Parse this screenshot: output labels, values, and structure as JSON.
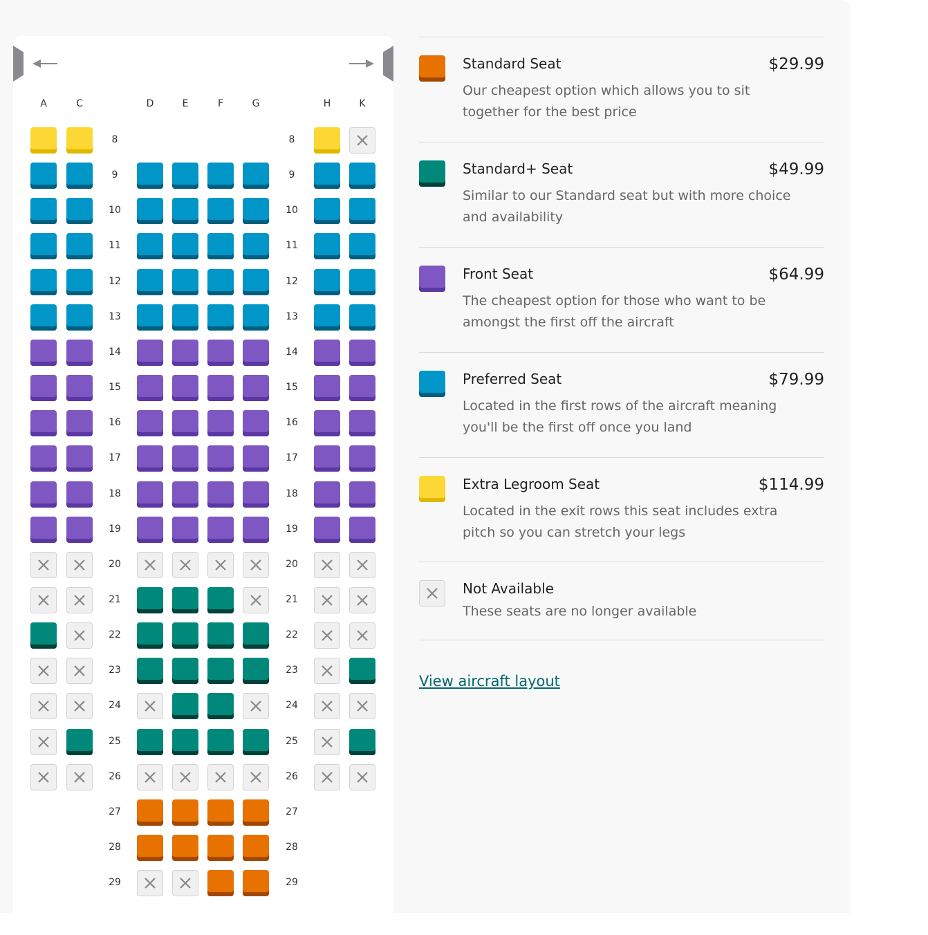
{
  "seat_types": {
    "standard": {
      "label": "Standard Seat",
      "price": "$29.99",
      "description": "Our cheapest option which allows you to sit together for the best price",
      "color": "#e87200",
      "shade": "#a34800"
    },
    "standard_plus": {
      "label": "Standard+ Seat",
      "price": "$49.99",
      "description": "Similar to our Standard seat but with more choice and availability",
      "color": "#00897b",
      "shade": "#00413a"
    },
    "front": {
      "label": "Front Seat",
      "price": "$64.99",
      "description": "The cheapest option for those who want to be amongst the first off the aircraft",
      "color": "#7e57c2",
      "shade": "#5b37a3"
    },
    "preferred": {
      "label": "Preferred Seat",
      "price": "$79.99",
      "description": "Located in the first rows of the aircraft meaning you'll be the first off once you land",
      "color": "#0096c7",
      "shade": "#005f80"
    },
    "extra_legroom": {
      "label": "Extra Legroom Seat",
      "price": "$114.99",
      "description": "Located in the exit rows this seat includes extra pitch so you can stretch your legs",
      "color": "#fdd835",
      "shade": "#e0b800"
    },
    "unavailable": {
      "label": "Not Available",
      "price": "",
      "description": "These seats are no longer available",
      "color": "#f0f0f0",
      "shade": "#d2d2d2"
    }
  },
  "legend_order": [
    "standard",
    "standard_plus",
    "front",
    "preferred",
    "extra_legroom",
    "unavailable"
  ],
  "columns": [
    "A",
    "C",
    "D",
    "E",
    "F",
    "G",
    "H",
    "K"
  ],
  "rows": [
    {
      "num": "8",
      "seats": [
        "extra_legroom",
        "extra_legroom",
        null,
        null,
        null,
        null,
        "extra_legroom",
        "unavailable"
      ]
    },
    {
      "num": "9",
      "seats": [
        "preferred",
        "preferred",
        "preferred",
        "preferred",
        "preferred",
        "preferred",
        "preferred",
        "preferred"
      ]
    },
    {
      "num": "10",
      "seats": [
        "preferred",
        "preferred",
        "preferred",
        "preferred",
        "preferred",
        "preferred",
        "preferred",
        "preferred"
      ]
    },
    {
      "num": "11",
      "seats": [
        "preferred",
        "preferred",
        "preferred",
        "preferred",
        "preferred",
        "preferred",
        "preferred",
        "preferred"
      ]
    },
    {
      "num": "12",
      "seats": [
        "preferred",
        "preferred",
        "preferred",
        "preferred",
        "preferred",
        "preferred",
        "preferred",
        "preferred"
      ]
    },
    {
      "num": "13",
      "seats": [
        "preferred",
        "preferred",
        "preferred",
        "preferred",
        "preferred",
        "preferred",
        "preferred",
        "preferred"
      ]
    },
    {
      "num": "14",
      "seats": [
        "front",
        "front",
        "front",
        "front",
        "front",
        "front",
        "front",
        "front"
      ]
    },
    {
      "num": "15",
      "seats": [
        "front",
        "front",
        "front",
        "front",
        "front",
        "front",
        "front",
        "front"
      ]
    },
    {
      "num": "16",
      "seats": [
        "front",
        "front",
        "front",
        "front",
        "front",
        "front",
        "front",
        "front"
      ]
    },
    {
      "num": "17",
      "seats": [
        "front",
        "front",
        "front",
        "front",
        "front",
        "front",
        "front",
        "front"
      ]
    },
    {
      "num": "18",
      "seats": [
        "front",
        "front",
        "front",
        "front",
        "front",
        "front",
        "front",
        "front"
      ]
    },
    {
      "num": "19",
      "seats": [
        "front",
        "front",
        "front",
        "front",
        "front",
        "front",
        "front",
        "front"
      ]
    },
    {
      "num": "20",
      "seats": [
        "unavailable",
        "unavailable",
        "unavailable",
        "unavailable",
        "unavailable",
        "unavailable",
        "unavailable",
        "unavailable"
      ]
    },
    {
      "num": "21",
      "seats": [
        "unavailable",
        "unavailable",
        "standard_plus",
        "standard_plus",
        "standard_plus",
        "unavailable",
        "unavailable",
        "unavailable"
      ]
    },
    {
      "num": "22",
      "seats": [
        "standard_plus",
        "unavailable",
        "standard_plus",
        "standard_plus",
        "standard_plus",
        "standard_plus",
        "unavailable",
        "unavailable"
      ]
    },
    {
      "num": "23",
      "seats": [
        "unavailable",
        "unavailable",
        "standard_plus",
        "standard_plus",
        "standard_plus",
        "standard_plus",
        "unavailable",
        "standard_plus"
      ]
    },
    {
      "num": "24",
      "seats": [
        "unavailable",
        "unavailable",
        "unavailable",
        "standard_plus",
        "standard_plus",
        "unavailable",
        "unavailable",
        "unavailable"
      ]
    },
    {
      "num": "25",
      "seats": [
        "unavailable",
        "standard_plus",
        "standard_plus",
        "standard_plus",
        "standard_plus",
        "standard_plus",
        "unavailable",
        "standard_plus"
      ]
    },
    {
      "num": "26",
      "seats": [
        "unavailable",
        "unavailable",
        "unavailable",
        "unavailable",
        "unavailable",
        "unavailable",
        "unavailable",
        "unavailable"
      ]
    },
    {
      "num": "27",
      "seats": [
        null,
        null,
        "standard",
        "standard",
        "standard",
        "standard",
        null,
        null
      ]
    },
    {
      "num": "28",
      "seats": [
        null,
        null,
        "standard",
        "standard",
        "standard",
        "standard",
        null,
        null
      ]
    },
    {
      "num": "29",
      "seats": [
        null,
        null,
        "unavailable",
        "unavailable",
        "standard",
        "standard",
        null,
        null
      ]
    }
  ],
  "icons": {
    "front": "arrow-left-icon",
    "back": "arrow-right-icon",
    "unavailable": "close-x-icon"
  },
  "view_layout_link": "View aircraft layout"
}
